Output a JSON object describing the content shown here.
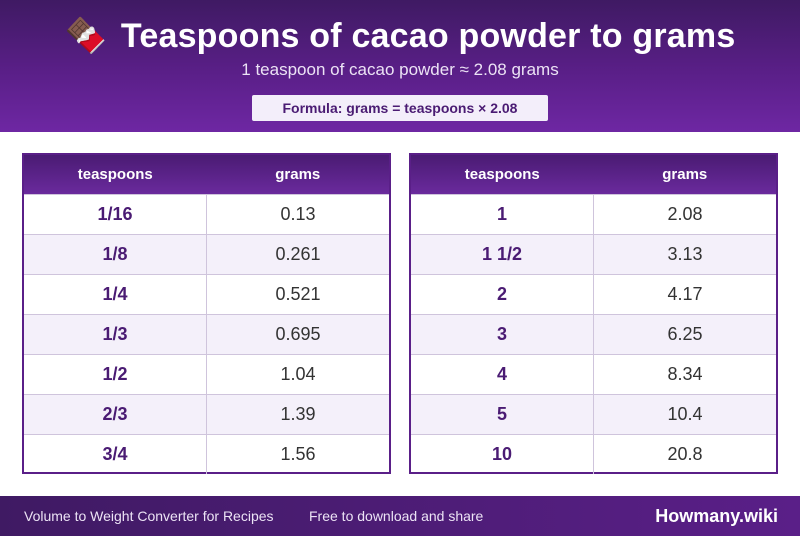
{
  "header": {
    "icon": "chocolate-bar-icon",
    "icon_glyph": "🍫",
    "title": "Teaspoons of cacao powder to grams",
    "subtitle": "1 teaspoon of cacao powder ≈ 2.08 grams",
    "formula": "Formula: grams = teaspoons × 2.08"
  },
  "tables": {
    "left": {
      "headers": [
        "teaspoons",
        "grams"
      ],
      "rows": [
        [
          "1/16",
          "0.13"
        ],
        [
          "1/8",
          "0.261"
        ],
        [
          "1/4",
          "0.521"
        ],
        [
          "1/3",
          "0.695"
        ],
        [
          "1/2",
          "1.04"
        ],
        [
          "2/3",
          "1.39"
        ],
        [
          "3/4",
          "1.56"
        ]
      ]
    },
    "right": {
      "headers": [
        "teaspoons",
        "grams"
      ],
      "rows": [
        [
          "1",
          "2.08"
        ],
        [
          "1 1/2",
          "3.13"
        ],
        [
          "2",
          "4.17"
        ],
        [
          "3",
          "6.25"
        ],
        [
          "4",
          "8.34"
        ],
        [
          "5",
          "10.4"
        ],
        [
          "10",
          "20.8"
        ]
      ]
    }
  },
  "footer": {
    "left": "Volume to Weight Converter for Recipes",
    "middle": "Free to download and share",
    "brand": "Howmany.wiki"
  },
  "colors": {
    "brand_purple": "#5a1f88",
    "dark_purple": "#3f1a63",
    "row_alt": "#f4f0fa"
  }
}
